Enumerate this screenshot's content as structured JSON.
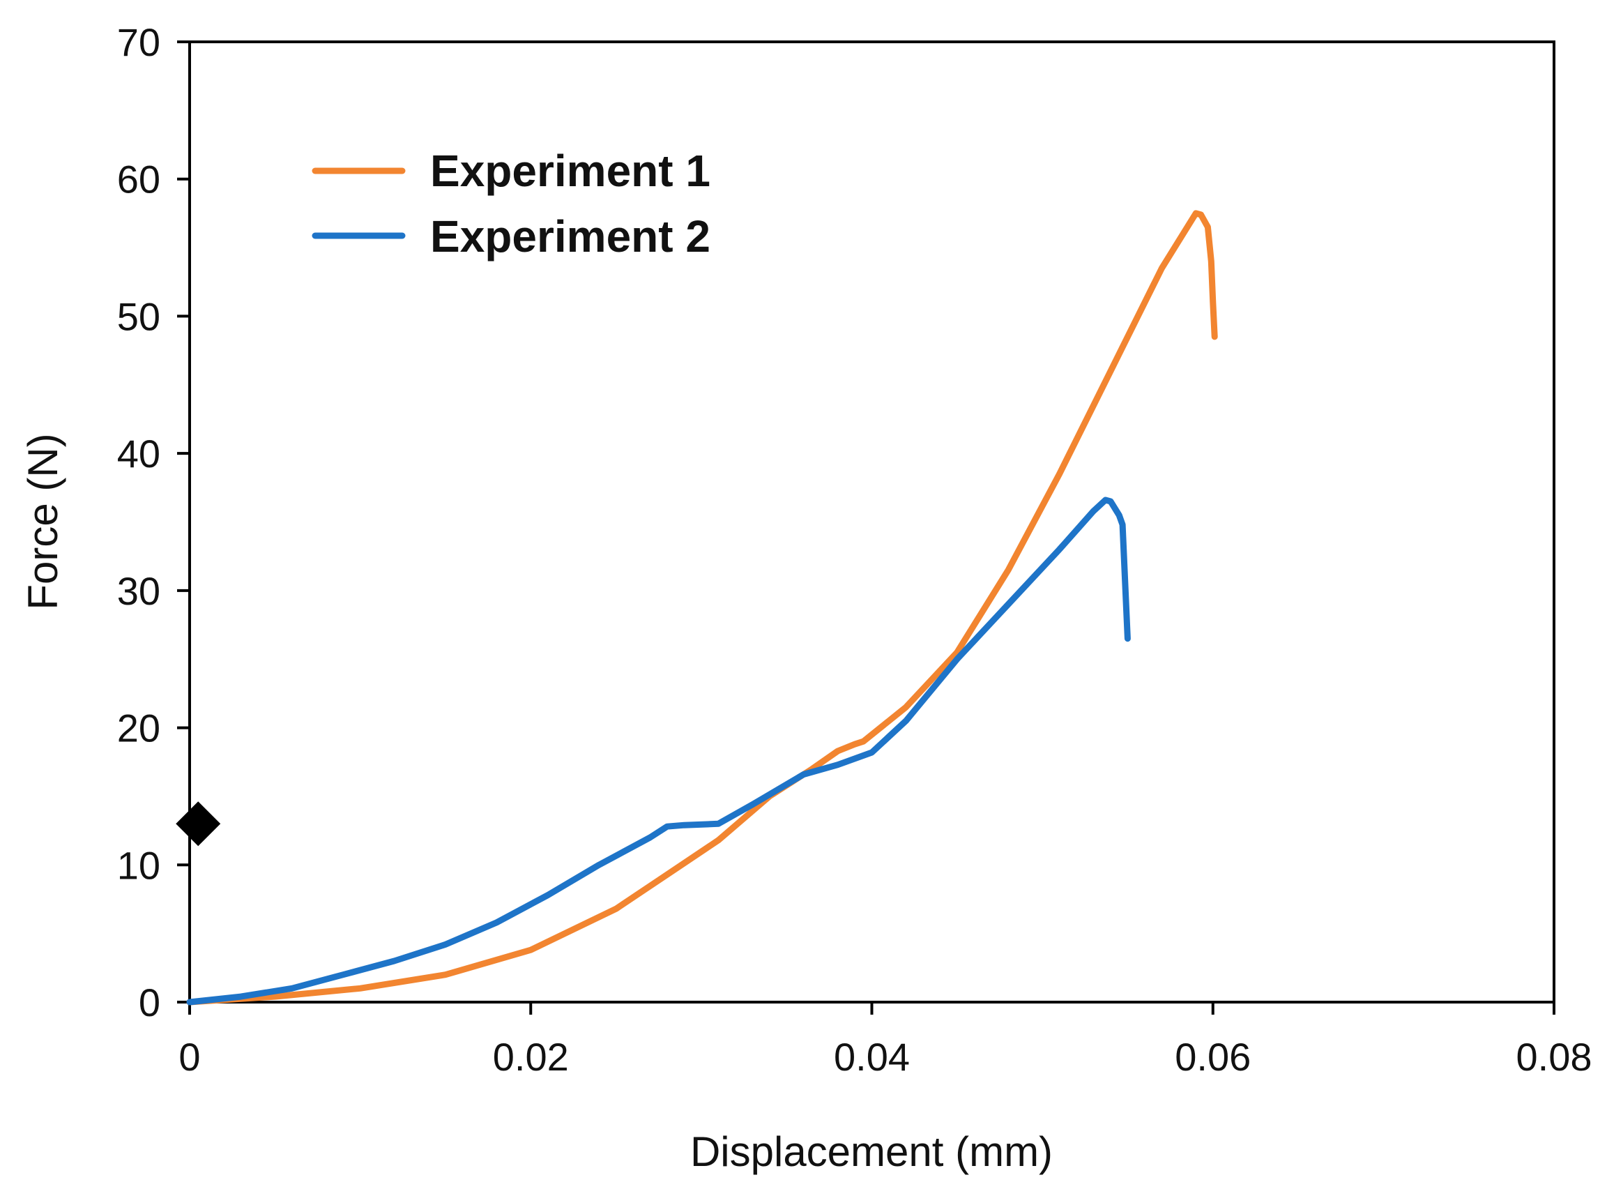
{
  "chart_data": {
    "type": "line",
    "title": "",
    "xlabel": "Displacement (mm)",
    "ylabel": "Force (N)",
    "xlim": [
      0,
      0.08
    ],
    "ylim": [
      0,
      70
    ],
    "xticks": [
      0,
      0.02,
      0.04,
      0.06,
      0.08
    ],
    "xtick_labels": [
      "0",
      "0.02",
      "0.04",
      "0.06",
      "0.08"
    ],
    "yticks": [
      0,
      10,
      20,
      30,
      40,
      50,
      60,
      70
    ],
    "ytick_labels": [
      "0",
      "10",
      "20",
      "30",
      "40",
      "50",
      "60",
      "70"
    ],
    "grid": false,
    "legend_position": "top-left",
    "series": [
      {
        "name": "Experiment 1",
        "color": "#F28530",
        "x": [
          0,
          0.005,
          0.01,
          0.015,
          0.02,
          0.025,
          0.028,
          0.031,
          0.034,
          0.0365,
          0.038,
          0.039,
          0.0395,
          0.042,
          0.045,
          0.048,
          0.051,
          0.054,
          0.057,
          0.059,
          0.0593,
          0.0597,
          0.0599,
          0.06,
          0.0601
        ],
        "y": [
          0,
          0.4,
          1.0,
          2.0,
          3.8,
          6.8,
          9.3,
          11.8,
          15.0,
          17.0,
          18.3,
          18.8,
          19.0,
          21.5,
          25.5,
          31.5,
          38.5,
          46.0,
          53.5,
          57.5,
          57.4,
          56.5,
          54.0,
          51.0,
          48.5
        ]
      },
      {
        "name": "Experiment 2",
        "color": "#1E74C8",
        "x": [
          0,
          0.003,
          0.006,
          0.009,
          0.012,
          0.015,
          0.018,
          0.021,
          0.024,
          0.027,
          0.028,
          0.029,
          0.031,
          0.033,
          0.036,
          0.038,
          0.04,
          0.042,
          0.045,
          0.048,
          0.051,
          0.053,
          0.0537,
          0.054,
          0.0545,
          0.0547,
          0.055
        ],
        "y": [
          0,
          0.4,
          1.0,
          2.0,
          3.0,
          4.2,
          5.8,
          7.8,
          10.0,
          12.0,
          12.8,
          12.9,
          13.0,
          14.4,
          16.6,
          17.3,
          18.2,
          20.5,
          25.0,
          29.0,
          33.0,
          35.8,
          36.6,
          36.5,
          35.5,
          34.8,
          26.5
        ]
      },
      {
        "name": "",
        "marker": "diamond",
        "color": "#000000",
        "x": [
          0.0005
        ],
        "y": [
          13.0
        ]
      }
    ]
  }
}
